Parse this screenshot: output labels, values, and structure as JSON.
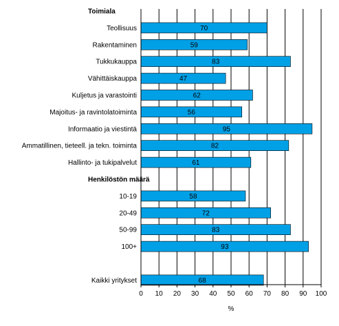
{
  "chart_data": {
    "type": "bar",
    "orientation": "horizontal",
    "xlabel": "%",
    "ylabel": "",
    "xlim": [
      0,
      100
    ],
    "xticks": [
      0,
      10,
      20,
      30,
      40,
      50,
      60,
      70,
      80,
      90,
      100
    ],
    "grid": "vertical",
    "bar_color": "#00a0e6",
    "bar_edge_color": "#000000",
    "rows": [
      {
        "kind": "group",
        "label": "Toimiala"
      },
      {
        "kind": "bar",
        "label": "Teollisuus",
        "value": 70
      },
      {
        "kind": "bar",
        "label": "Rakentaminen",
        "value": 59
      },
      {
        "kind": "bar",
        "label": "Tukkukauppa",
        "value": 83
      },
      {
        "kind": "bar",
        "label": "Vähittäiskauppa",
        "value": 47
      },
      {
        "kind": "bar",
        "label": "Kuljetus ja varastointi",
        "value": 62
      },
      {
        "kind": "bar",
        "label": "Majoitus- ja ravintolatoiminta",
        "value": 56
      },
      {
        "kind": "bar",
        "label": "Informaatio ja viestintä",
        "value": 95
      },
      {
        "kind": "bar",
        "label": "Ammatillinen, tieteell. ja tekn. toiminta",
        "value": 82
      },
      {
        "kind": "bar",
        "label": "Hallinto- ja tukipalvelut",
        "value": 61
      },
      {
        "kind": "group",
        "label": "Henkilöstön määrä"
      },
      {
        "kind": "bar",
        "label": "10-19",
        "value": 58
      },
      {
        "kind": "bar",
        "label": "20-49",
        "value": 72
      },
      {
        "kind": "bar",
        "label": "50-99",
        "value": 83
      },
      {
        "kind": "bar",
        "label": "100+",
        "value": 93
      },
      {
        "kind": "spacer",
        "label": ""
      },
      {
        "kind": "bar",
        "label": "Kaikki yritykset",
        "value": 68
      }
    ]
  }
}
